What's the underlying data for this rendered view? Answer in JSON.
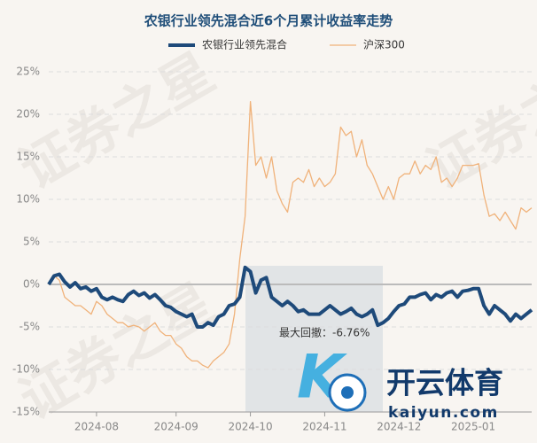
{
  "chart_data": {
    "type": "line",
    "title": "农银行业领先混合近6个月累计收益率走势",
    "categories": [
      null,
      null,
      null,
      null,
      null,
      null,
      null,
      null,
      null,
      "2024-08",
      null,
      null,
      null,
      null,
      null,
      null,
      null,
      null,
      null,
      null,
      null,
      null,
      null,
      null,
      "2024-09",
      null,
      null,
      null,
      null,
      null,
      null,
      null,
      null,
      null,
      null,
      null,
      null,
      null,
      "2024-10",
      null,
      null,
      null,
      null,
      null,
      null,
      null,
      null,
      null,
      null,
      null,
      null,
      null,
      "2024-11",
      null,
      null,
      null,
      null,
      null,
      null,
      null,
      null,
      null,
      null,
      null,
      null,
      null,
      "2024-12",
      null,
      null,
      null,
      null,
      null,
      null,
      null,
      null,
      null,
      null,
      null,
      null,
      null,
      "2025-01",
      null,
      null,
      null,
      null,
      null,
      null,
      null,
      null,
      null,
      null,
      null
    ],
    "series": [
      {
        "name": "农银行业领先混合",
        "color": "#1e4a7a",
        "values": [
          0,
          1,
          1.2,
          0.3,
          -0.3,
          0.2,
          -0.5,
          -0.3,
          -0.8,
          -0.5,
          -1.5,
          -1.8,
          -1.5,
          -1.8,
          -2,
          -1.2,
          -0.8,
          -1.3,
          -1.0,
          -1.6,
          -1.2,
          -1.8,
          -2.5,
          -2.7,
          -3.2,
          -3.5,
          -3.8,
          -3.5,
          -5.0,
          -5.0,
          -4.5,
          -4.8,
          -3.8,
          -3.5,
          -2.5,
          -2.3,
          -1.5,
          2.0,
          1.5,
          -1.0,
          0.5,
          0.8,
          -1.5,
          -2.0,
          -2.5,
          -2.0,
          -2.5,
          -3.2,
          -3.0,
          -3.5,
          -3.5,
          -3.5,
          -3.0,
          -2.5,
          -3.0,
          -3.5,
          -3.2,
          -2.8,
          -3.5,
          -3.8,
          -3.5,
          -3.0,
          -4.8,
          -4.5,
          -4.0,
          -3.2,
          -2.5,
          -2.3,
          -1.5,
          -1.5,
          -1.2,
          -1.0,
          -1.8,
          -1.2,
          -1.5,
          -1.0,
          -0.8,
          -1.5,
          -0.8,
          -0.7,
          -0.5,
          -0.5,
          -2.5,
          -3.5,
          -2.5,
          -3.0,
          -3.5,
          -4.3,
          -3.5,
          -4.0,
          -3.5,
          -3.0
        ]
      },
      {
        "name": "沪深300",
        "color": "#f0b27a",
        "values": [
          0,
          1,
          0.5,
          -1.5,
          -2,
          -2.5,
          -2.5,
          -3,
          -3.5,
          -2,
          -2.5,
          -3.5,
          -4,
          -4.5,
          -4.5,
          -5,
          -4.8,
          -5,
          -5.5,
          -5,
          -4.5,
          -5.5,
          -6,
          -6,
          -7,
          -7.5,
          -8.5,
          -9,
          -9,
          -9.5,
          -9.8,
          -9,
          -8.5,
          -8,
          -7,
          -3.5,
          3,
          8,
          21.5,
          14,
          15,
          12.5,
          15,
          11,
          9.5,
          8.5,
          12,
          12.5,
          12,
          13.5,
          11.5,
          12.5,
          11.5,
          12,
          13,
          18.5,
          17.5,
          18,
          15,
          17,
          14,
          13,
          11.5,
          10,
          11.5,
          10,
          12.5,
          13,
          13,
          14.5,
          13,
          14,
          13.5,
          15,
          12,
          12.5,
          11.5,
          12.5,
          14,
          14,
          14,
          14.2,
          10.5,
          8,
          8.3,
          7.5,
          8.5,
          7.5,
          6.5,
          9,
          8.5,
          9
        ]
      }
    ],
    "ylim": [
      -15,
      25
    ],
    "yticks": [
      {
        "value": -15,
        "label": "-15%"
      },
      {
        "value": -10,
        "label": "-10%"
      },
      {
        "value": -5,
        "label": "-5%"
      },
      {
        "value": 0,
        "label": "0%"
      },
      {
        "value": 5,
        "label": "5%"
      },
      {
        "value": 10,
        "label": "10%"
      },
      {
        "value": 15,
        "label": "15%"
      },
      {
        "value": 20,
        "label": "20%"
      },
      {
        "value": 25,
        "label": "25%"
      }
    ],
    "grid": true,
    "annotation": "最大回撤：-6.76%",
    "watermark": "证券之星",
    "logo": {
      "name": "开云体育",
      "url": "kaiyun.com"
    }
  }
}
